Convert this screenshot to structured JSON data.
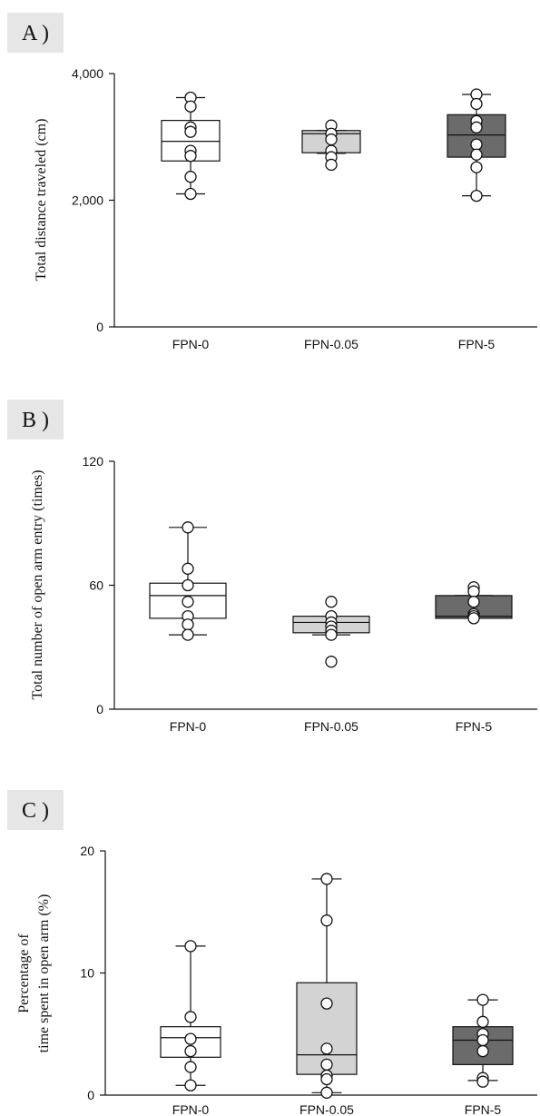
{
  "chart_data": [
    {
      "type": "box",
      "panel_label": "A )",
      "ylabel": "Total distance traveled (cm)",
      "ylim": [
        0,
        4000
      ],
      "yticks": [
        0,
        2000,
        4000
      ],
      "yticklabels": [
        "0",
        "2,000",
        "4,000"
      ],
      "categories": [
        "FPN-0",
        "FPN-0.05",
        "FPN-5"
      ],
      "box_colors": [
        "#ffffff",
        "#d3d3d3",
        "#6b6b6b"
      ],
      "median_colors": [
        "#111111",
        "#111111",
        "#111111"
      ],
      "boxes": [
        {
          "whisker_low": 2100,
          "q1": 2620,
          "median": 2930,
          "q3": 3260,
          "whisker_high": 3620
        },
        {
          "whisker_low": 2740,
          "q1": 2750,
          "median": 3050,
          "q3": 3100,
          "whisker_high": 3100
        },
        {
          "whisker_low": 2070,
          "q1": 2680,
          "median": 3030,
          "q3": 3350,
          "whisker_high": 3670
        }
      ],
      "points": [
        [
          3620,
          3480,
          3150,
          3080,
          2780,
          2700,
          2370,
          2100
        ],
        [
          3180,
          3050,
          2960,
          2780,
          2680,
          2560
        ],
        [
          3670,
          3520,
          3250,
          3150,
          2880,
          2720,
          2520,
          2070
        ]
      ]
    },
    {
      "type": "box",
      "panel_label": "B )",
      "ylabel": "Total number of open arm entry (times)",
      "ylim": [
        0,
        120
      ],
      "yticks": [
        0,
        60,
        120
      ],
      "yticklabels": [
        "0",
        "60",
        "120"
      ],
      "categories": [
        "FPN-0",
        "FPN-0.05",
        "FPN-5"
      ],
      "box_colors": [
        "#ffffff",
        "#d3d3d3",
        "#6b6b6b"
      ],
      "median_colors": [
        "#111111",
        "#111111",
        "#111111"
      ],
      "boxes": [
        {
          "whisker_low": 36,
          "q1": 44,
          "median": 55,
          "q3": 61,
          "whisker_high": 88
        },
        {
          "whisker_low": 36,
          "q1": 37,
          "median": 42,
          "q3": 45,
          "whisker_high": 45
        },
        {
          "whisker_low": 44,
          "q1": 44,
          "median": 45,
          "q3": 55,
          "whisker_high": 55
        }
      ],
      "points": [
        [
          88,
          68,
          60,
          52,
          45,
          41,
          36
        ],
        [
          52,
          45,
          42,
          40,
          38,
          36,
          23
        ],
        [
          59,
          57,
          52,
          46,
          45,
          44
        ]
      ]
    },
    {
      "type": "box",
      "panel_label": "C )",
      "ylabel_lines": [
        "Percentage of",
        "time spent in open arm (%)"
      ],
      "ylim": [
        0,
        20
      ],
      "yticks": [
        0,
        10,
        20
      ],
      "yticklabels": [
        "0",
        "10",
        "20"
      ],
      "categories": [
        "FPN-0",
        "FPN-0.05",
        "FPN-5"
      ],
      "box_colors": [
        "#ffffff",
        "#d3d3d3",
        "#6b6b6b"
      ],
      "median_colors": [
        "#111111",
        "#111111",
        "#111111"
      ],
      "boxes": [
        {
          "whisker_low": 0.8,
          "q1": 3.1,
          "median": 4.7,
          "q3": 5.6,
          "whisker_high": 12.2
        },
        {
          "whisker_low": 0.2,
          "q1": 1.7,
          "median": 3.3,
          "q3": 9.2,
          "whisker_high": 17.7
        },
        {
          "whisker_low": 1.2,
          "q1": 2.5,
          "median": 4.5,
          "q3": 5.6,
          "whisker_high": 7.8
        }
      ],
      "points": [
        [
          12.2,
          6.4,
          4.6,
          3.6,
          2.3,
          0.8
        ],
        [
          17.7,
          14.3,
          7.5,
          3.8,
          2.5,
          1.6,
          1.3,
          0.2
        ],
        [
          7.8,
          6.0,
          5.0,
          4.5,
          3.6,
          1.4,
          1.1
        ]
      ]
    }
  ]
}
